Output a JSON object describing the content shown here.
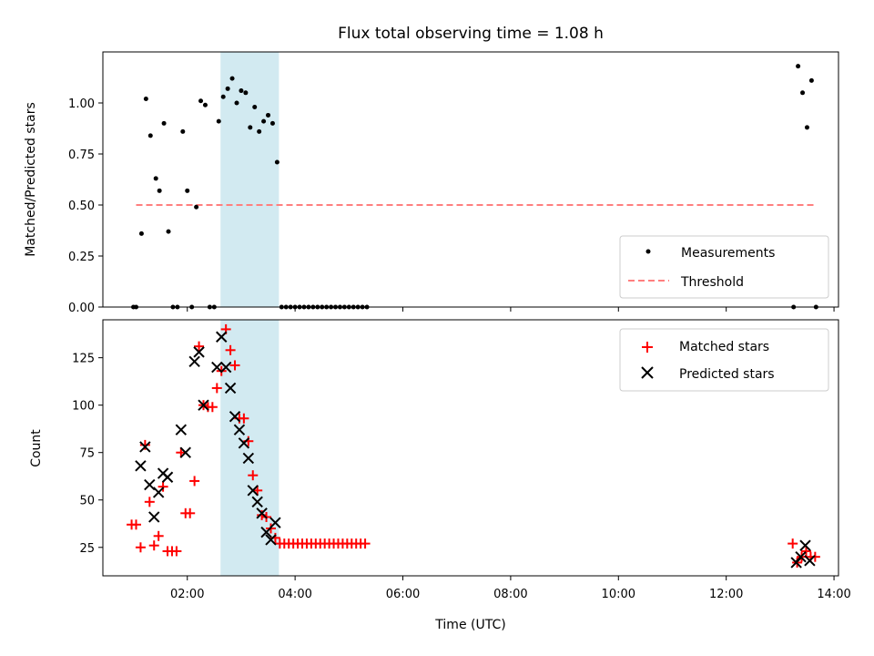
{
  "title": "Flux total observing time = 1.08 h",
  "chart_data": [
    {
      "type": "scatter",
      "ylabel": "Matched/Predicted stars",
      "xlabel": "",
      "xlim": [
        "00:26",
        "14:05"
      ],
      "ylim": [
        0,
        1.25
      ],
      "yticks": [
        "0.00",
        "0.25",
        "0.50",
        "0.75",
        "1.00"
      ],
      "ytick_values": [
        0,
        0.25,
        0.5,
        0.75,
        1.0
      ],
      "grid": false,
      "legend": "bottom-right",
      "highlight_span": {
        "x_start": "02:37",
        "x_end": "03:42",
        "color": "#add8e6"
      },
      "series": [
        {
          "name": "Measurements",
          "marker": "dot",
          "color": "#000000",
          "points": [
            [
              "01:00",
              0
            ],
            [
              "01:03",
              0
            ],
            [
              "01:09",
              0.36
            ],
            [
              "01:14",
              1.02
            ],
            [
              "01:19",
              0.84
            ],
            [
              "01:25",
              0.63
            ],
            [
              "01:29",
              0.57
            ],
            [
              "01:34",
              0.9
            ],
            [
              "01:39",
              0.37
            ],
            [
              "01:44",
              0
            ],
            [
              "01:49",
              0
            ],
            [
              "01:55",
              0.86
            ],
            [
              "02:00",
              0.57
            ],
            [
              "02:05",
              0
            ],
            [
              "02:10",
              0.49
            ],
            [
              "02:15",
              1.01
            ],
            [
              "02:20",
              0.99
            ],
            [
              "02:25",
              0
            ],
            [
              "02:30",
              0
            ],
            [
              "02:35",
              0.91
            ],
            [
              "02:40",
              1.03
            ],
            [
              "02:45",
              1.07
            ],
            [
              "02:50",
              1.12
            ],
            [
              "02:55",
              1.0
            ],
            [
              "03:00",
              1.06
            ],
            [
              "03:05",
              1.05
            ],
            [
              "03:10",
              0.88
            ],
            [
              "03:15",
              0.98
            ],
            [
              "03:20",
              0.86
            ],
            [
              "03:25",
              0.91
            ],
            [
              "03:30",
              0.94
            ],
            [
              "03:35",
              0.9
            ],
            [
              "03:40",
              0.71
            ],
            [
              "03:45",
              0
            ],
            [
              "03:50",
              0
            ],
            [
              "03:55",
              0
            ],
            [
              "04:00",
              0
            ],
            [
              "04:05",
              0
            ],
            [
              "04:10",
              0
            ],
            [
              "04:15",
              0
            ],
            [
              "04:20",
              0
            ],
            [
              "04:25",
              0
            ],
            [
              "04:30",
              0
            ],
            [
              "04:35",
              0
            ],
            [
              "04:40",
              0
            ],
            [
              "04:45",
              0
            ],
            [
              "04:50",
              0
            ],
            [
              "04:55",
              0
            ],
            [
              "05:00",
              0
            ],
            [
              "05:05",
              0
            ],
            [
              "05:10",
              0
            ],
            [
              "05:15",
              0
            ],
            [
              "05:20",
              0
            ],
            [
              "13:15",
              0
            ],
            [
              "13:20",
              1.18
            ],
            [
              "13:25",
              1.05
            ],
            [
              "13:30",
              0.88
            ],
            [
              "13:35",
              1.11
            ],
            [
              "13:40",
              0
            ]
          ]
        },
        {
          "name": "Threshold",
          "marker": "dashed-line",
          "color": "#ff7f7f",
          "points": [
            [
              "01:03",
              0.5
            ],
            [
              "13:40",
              0.5
            ]
          ]
        }
      ]
    },
    {
      "type": "scatter",
      "ylabel": "Count",
      "xlabel": "Time (UTC)",
      "xlim": [
        "00:26",
        "14:05"
      ],
      "ylim": [
        10,
        145
      ],
      "yticks": [
        "25",
        "50",
        "75",
        "100",
        "125"
      ],
      "ytick_values": [
        25,
        50,
        75,
        100,
        125
      ],
      "xticks": [
        "02:00",
        "04:00",
        "06:00",
        "08:00",
        "10:00",
        "12:00",
        "14:00"
      ],
      "grid": false,
      "legend": "top-right",
      "highlight_span": {
        "x_start": "02:37",
        "x_end": "03:42",
        "color": "#add8e6"
      },
      "series": [
        {
          "name": "Matched stars",
          "marker": "plus",
          "color": "#ff0000",
          "points": [
            [
              "00:58",
              37
            ],
            [
              "01:03",
              37
            ],
            [
              "01:08",
              25
            ],
            [
              "01:13",
              79
            ],
            [
              "01:18",
              49
            ],
            [
              "01:23",
              26
            ],
            [
              "01:28",
              31
            ],
            [
              "01:33",
              57
            ],
            [
              "01:38",
              23
            ],
            [
              "01:43",
              23
            ],
            [
              "01:48",
              23
            ],
            [
              "01:53",
              75
            ],
            [
              "01:58",
              43
            ],
            [
              "02:03",
              43
            ],
            [
              "02:08",
              60
            ],
            [
              "02:13",
              131
            ],
            [
              "02:18",
              100
            ],
            [
              "02:23",
              99
            ],
            [
              "02:28",
              99
            ],
            [
              "02:33",
              109
            ],
            [
              "02:38",
              118
            ],
            [
              "02:43",
              140
            ],
            [
              "02:48",
              129
            ],
            [
              "02:53",
              121
            ],
            [
              "02:58",
              93
            ],
            [
              "03:03",
              93
            ],
            [
              "03:08",
              81
            ],
            [
              "03:13",
              63
            ],
            [
              "03:18",
              55
            ],
            [
              "03:23",
              42
            ],
            [
              "03:28",
              41
            ],
            [
              "03:33",
              35
            ],
            [
              "03:38",
              30
            ],
            [
              "03:43",
              27
            ],
            [
              "03:48",
              27
            ],
            [
              "03:53",
              27
            ],
            [
              "03:58",
              27
            ],
            [
              "04:03",
              27
            ],
            [
              "04:08",
              27
            ],
            [
              "04:13",
              27
            ],
            [
              "04:18",
              27
            ],
            [
              "04:23",
              27
            ],
            [
              "04:28",
              27
            ],
            [
              "04:33",
              27
            ],
            [
              "04:38",
              27
            ],
            [
              "04:43",
              27
            ],
            [
              "04:48",
              27
            ],
            [
              "04:53",
              27
            ],
            [
              "04:58",
              27
            ],
            [
              "05:03",
              27
            ],
            [
              "05:08",
              27
            ],
            [
              "05:13",
              27
            ],
            [
              "05:18",
              27
            ],
            [
              "13:14",
              27
            ],
            [
              "13:19",
              17
            ],
            [
              "13:24",
              20
            ],
            [
              "13:29",
              23
            ],
            [
              "13:34",
              20
            ],
            [
              "13:39",
              20
            ]
          ]
        },
        {
          "name": "Predicted stars",
          "marker": "cross",
          "color": "#000000",
          "points": [
            [
              "01:08",
              68
            ],
            [
              "01:13",
              78
            ],
            [
              "01:18",
              58
            ],
            [
              "01:23",
              41
            ],
            [
              "01:28",
              54
            ],
            [
              "01:33",
              64
            ],
            [
              "01:38",
              62
            ],
            [
              "01:53",
              87
            ],
            [
              "01:58",
              75
            ],
            [
              "02:08",
              123
            ],
            [
              "02:13",
              128
            ],
            [
              "02:18",
              100
            ],
            [
              "02:33",
              120
            ],
            [
              "02:38",
              136
            ],
            [
              "02:43",
              120
            ],
            [
              "02:48",
              109
            ],
            [
              "02:53",
              94
            ],
            [
              "02:58",
              87
            ],
            [
              "03:03",
              80
            ],
            [
              "03:08",
              72
            ],
            [
              "03:13",
              55
            ],
            [
              "03:18",
              49
            ],
            [
              "03:23",
              43
            ],
            [
              "03:28",
              33
            ],
            [
              "03:33",
              29
            ],
            [
              "03:38",
              38
            ],
            [
              "13:18",
              17
            ],
            [
              "13:23",
              20
            ],
            [
              "13:28",
              26
            ],
            [
              "13:33",
              18
            ]
          ]
        }
      ]
    }
  ]
}
